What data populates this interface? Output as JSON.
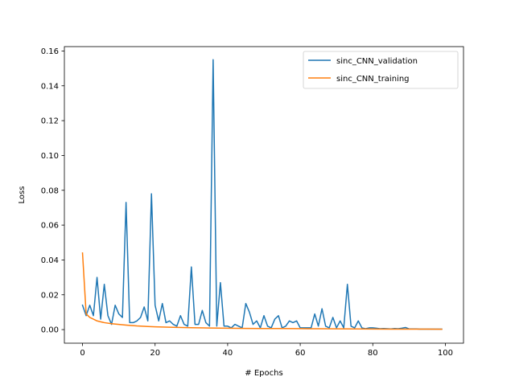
{
  "chart_data": {
    "type": "line",
    "title": "",
    "xlabel": "# Epochs",
    "ylabel": "Loss",
    "xlim": [
      -5,
      105
    ],
    "ylim": [
      -0.0078,
      0.1625
    ],
    "xticks": [
      0,
      20,
      40,
      60,
      80,
      100
    ],
    "xtick_labels": [
      "0",
      "20",
      "40",
      "60",
      "80",
      "100"
    ],
    "yticks": [
      0.0,
      0.02,
      0.04,
      0.06,
      0.08,
      0.1,
      0.12,
      0.14,
      0.16
    ],
    "ytick_labels": [
      "0.00",
      "0.02",
      "0.04",
      "0.06",
      "0.08",
      "0.10",
      "0.12",
      "0.14",
      "0.16"
    ],
    "grid": false,
    "legend_position": "top-right",
    "series": [
      {
        "name": "sinc_CNN_validation",
        "color": "#1f77b4",
        "x": [
          0,
          1,
          2,
          3,
          4,
          5,
          6,
          7,
          8,
          9,
          10,
          11,
          12,
          13,
          14,
          15,
          16,
          17,
          18,
          19,
          20,
          21,
          22,
          23,
          24,
          25,
          26,
          27,
          28,
          29,
          30,
          31,
          32,
          33,
          34,
          35,
          36,
          37,
          38,
          39,
          40,
          41,
          42,
          43,
          44,
          45,
          46,
          47,
          48,
          49,
          50,
          51,
          52,
          53,
          54,
          55,
          56,
          57,
          58,
          59,
          60,
          61,
          62,
          63,
          64,
          65,
          66,
          67,
          68,
          69,
          70,
          71,
          72,
          73,
          74,
          75,
          76,
          77,
          78,
          79,
          80,
          81,
          82,
          83,
          84,
          85,
          86,
          87,
          88,
          89,
          90,
          91,
          92,
          93,
          94,
          95,
          96,
          97,
          98,
          99
        ],
        "values": [
          0.014,
          0.008,
          0.014,
          0.008,
          0.03,
          0.006,
          0.026,
          0.008,
          0.003,
          0.014,
          0.009,
          0.007,
          0.073,
          0.004,
          0.004,
          0.005,
          0.007,
          0.013,
          0.005,
          0.078,
          0.014,
          0.005,
          0.015,
          0.004,
          0.005,
          0.003,
          0.002,
          0.008,
          0.003,
          0.002,
          0.036,
          0.003,
          0.003,
          0.011,
          0.004,
          0.002,
          0.155,
          0.002,
          0.027,
          0.002,
          0.002,
          0.001,
          0.003,
          0.002,
          0.001,
          0.015,
          0.01,
          0.003,
          0.005,
          0.001,
          0.008,
          0.002,
          0.001,
          0.006,
          0.008,
          0.001,
          0.002,
          0.005,
          0.004,
          0.005,
          0.001,
          0.001,
          0.001,
          0.001,
          0.009,
          0.002,
          0.012,
          0.002,
          0.001,
          0.007,
          0.001,
          0.005,
          0.001,
          0.026,
          0.002,
          0.001,
          0.005,
          0.001,
          0.0005,
          0.001,
          0.001,
          0.0008,
          0.0005,
          0.0006,
          0.0005,
          0.0004,
          0.0006,
          0.0005,
          0.0008,
          0.0012,
          0.0004,
          0.0004,
          0.0004,
          0.0003,
          0.0003,
          0.0003,
          0.0003,
          0.0003,
          0.0003,
          0.0003
        ]
      },
      {
        "name": "sinc_CNN_training",
        "color": "#ff7f0e",
        "x": [
          0,
          1,
          2,
          3,
          4,
          5,
          6,
          8,
          10,
          12,
          15,
          18,
          20,
          25,
          30,
          35,
          40,
          45,
          50,
          55,
          60,
          65,
          70,
          75,
          80,
          85,
          90,
          95,
          99
        ],
        "values": [
          0.044,
          0.009,
          0.007,
          0.006,
          0.005,
          0.0045,
          0.004,
          0.0034,
          0.003,
          0.0026,
          0.0021,
          0.0018,
          0.0016,
          0.0013,
          0.0011,
          0.0009,
          0.0008,
          0.0007,
          0.00065,
          0.0006,
          0.00055,
          0.0005,
          0.00045,
          0.0004,
          0.00035,
          0.0003,
          0.0003,
          0.00025,
          0.0002
        ]
      }
    ]
  }
}
